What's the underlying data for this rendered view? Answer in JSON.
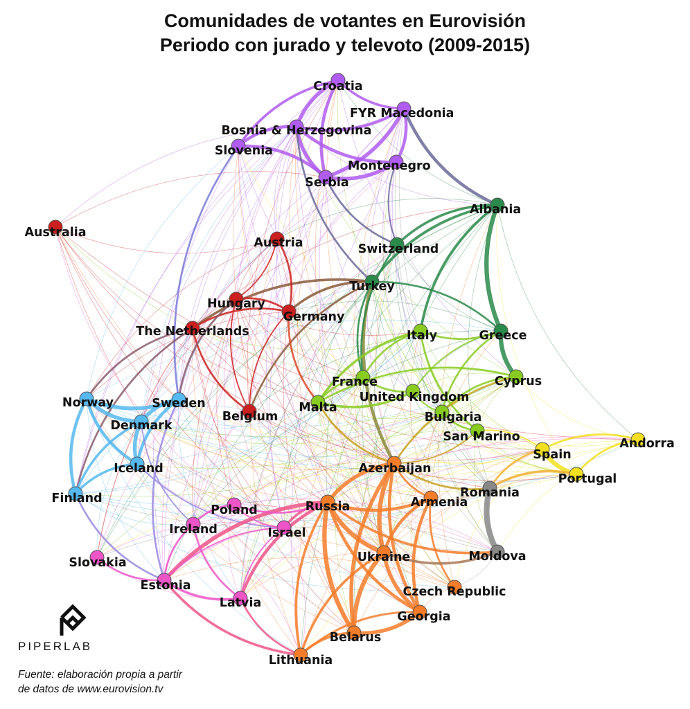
{
  "title_line1": "Comunidades de votantes en Eurovisión",
  "title_line2": "Periodo con jurado y televoto (2009-2015)",
  "brand": "PIPERLAB",
  "source_line1": "Fuente: elaboración propia a partir",
  "source_line2": "de datos de www.eurovision.tv",
  "communities": {
    "balkan": "#b05cf0",
    "southeast": "#2a8a4a",
    "west": "#cc1f1f",
    "nordic": "#55b8ee",
    "mediterranean": "#88cc22",
    "iberia": "#f2e020",
    "ex_soviet": "#f57d2a",
    "romania_moldova": "#888888",
    "central_east": "#ee55c8",
    "turkey": "#6a6a9a"
  },
  "nodes": [
    {
      "id": "croatia",
      "label": "Croatia",
      "group": "balkan"
    },
    {
      "id": "fyr-macedonia",
      "label": "FYR Macedonia",
      "group": "balkan"
    },
    {
      "id": "bosnia",
      "label": "Bosnia & Herzegovina",
      "group": "balkan"
    },
    {
      "id": "slovenia",
      "label": "Slovenia",
      "group": "balkan"
    },
    {
      "id": "montenegro",
      "label": "Montenegro",
      "group": "balkan"
    },
    {
      "id": "serbia",
      "label": "Serbia",
      "group": "balkan"
    },
    {
      "id": "albania",
      "label": "Albania",
      "group": "southeast"
    },
    {
      "id": "switzerland",
      "label": "Switzerland",
      "group": "southeast"
    },
    {
      "id": "turkey",
      "label": "Turkey",
      "group": "southeast"
    },
    {
      "id": "greece",
      "label": "Greece",
      "group": "southeast"
    },
    {
      "id": "australia",
      "label": "Australia",
      "group": "west"
    },
    {
      "id": "austria",
      "label": "Austria",
      "group": "west"
    },
    {
      "id": "hungary",
      "label": "Hungary",
      "group": "west"
    },
    {
      "id": "germany",
      "label": "Germany",
      "group": "west"
    },
    {
      "id": "netherlands",
      "label": "The Netherlands",
      "group": "west"
    },
    {
      "id": "belgium",
      "label": "Belgium",
      "group": "west"
    },
    {
      "id": "norway",
      "label": "Norway",
      "group": "nordic"
    },
    {
      "id": "sweden",
      "label": "Sweden",
      "group": "nordic"
    },
    {
      "id": "denmark",
      "label": "Denmark",
      "group": "nordic"
    },
    {
      "id": "iceland",
      "label": "Iceland",
      "group": "nordic"
    },
    {
      "id": "finland",
      "label": "Finland",
      "group": "nordic"
    },
    {
      "id": "italy",
      "label": "Italy",
      "group": "mediterranean"
    },
    {
      "id": "cyprus",
      "label": "Cyprus",
      "group": "mediterranean"
    },
    {
      "id": "france",
      "label": "France",
      "group": "mediterranean"
    },
    {
      "id": "uk",
      "label": "United Kingdom",
      "group": "mediterranean"
    },
    {
      "id": "malta",
      "label": "Malta",
      "group": "mediterranean"
    },
    {
      "id": "bulgaria",
      "label": "Bulgaria",
      "group": "mediterranean"
    },
    {
      "id": "san-marino",
      "label": "San Marino",
      "group": "mediterranean"
    },
    {
      "id": "andorra",
      "label": "Andorra",
      "group": "iberia"
    },
    {
      "id": "spain",
      "label": "Spain",
      "group": "iberia"
    },
    {
      "id": "portugal",
      "label": "Portugal",
      "group": "iberia"
    },
    {
      "id": "azerbaijan",
      "label": "Azerbaijan",
      "group": "ex_soviet"
    },
    {
      "id": "russia",
      "label": "Russia",
      "group": "ex_soviet"
    },
    {
      "id": "armenia",
      "label": "Armenia",
      "group": "ex_soviet"
    },
    {
      "id": "ukraine",
      "label": "Ukraine",
      "group": "ex_soviet"
    },
    {
      "id": "czech-republic",
      "label": "Czech Republic",
      "group": "ex_soviet"
    },
    {
      "id": "georgia",
      "label": "Georgia",
      "group": "ex_soviet"
    },
    {
      "id": "belarus",
      "label": "Belarus",
      "group": "ex_soviet"
    },
    {
      "id": "lithuania",
      "label": "Lithuania",
      "group": "ex_soviet"
    },
    {
      "id": "romania",
      "label": "Romania",
      "group": "romania_moldova"
    },
    {
      "id": "moldova",
      "label": "Moldova",
      "group": "romania_moldova"
    },
    {
      "id": "poland",
      "label": "Poland",
      "group": "central_east"
    },
    {
      "id": "ireland",
      "label": "Ireland",
      "group": "central_east"
    },
    {
      "id": "israel",
      "label": "Israel",
      "group": "central_east"
    },
    {
      "id": "slovakia",
      "label": "Slovakia",
      "group": "central_east"
    },
    {
      "id": "estonia",
      "label": "Estonia",
      "group": "central_east"
    },
    {
      "id": "latvia",
      "label": "Latvia",
      "group": "central_east"
    }
  ],
  "edges": [
    {
      "a": "croatia",
      "b": "bosnia",
      "w": 6,
      "color": "#b05cf0"
    },
    {
      "a": "croatia",
      "b": "serbia",
      "w": 5,
      "color": "#b05cf0"
    },
    {
      "a": "croatia",
      "b": "slovenia",
      "w": 4,
      "color": "#b05cf0"
    },
    {
      "a": "croatia",
      "b": "fyr-macedonia",
      "w": 4,
      "color": "#b05cf0"
    },
    {
      "a": "bosnia",
      "b": "serbia",
      "w": 6,
      "color": "#b05cf0"
    },
    {
      "a": "bosnia",
      "b": "slovenia",
      "w": 5,
      "color": "#b05cf0"
    },
    {
      "a": "bosnia",
      "b": "montenegro",
      "w": 5,
      "color": "#b05cf0"
    },
    {
      "a": "bosnia",
      "b": "fyr-macedonia",
      "w": 5,
      "color": "#b05cf0"
    },
    {
      "a": "serbia",
      "b": "montenegro",
      "w": 6,
      "color": "#b05cf0"
    },
    {
      "a": "serbia",
      "b": "fyr-macedonia",
      "w": 6,
      "color": "#b05cf0"
    },
    {
      "a": "serbia",
      "b": "slovenia",
      "w": 5,
      "color": "#b05cf0"
    },
    {
      "a": "montenegro",
      "b": "fyr-macedonia",
      "w": 5,
      "color": "#b05cf0"
    },
    {
      "a": "fyr-macedonia",
      "b": "albania",
      "w": 5,
      "color": "#6a6a9a"
    },
    {
      "a": "bosnia",
      "b": "turkey",
      "w": 3,
      "color": "#6a6a9a"
    },
    {
      "a": "serbia",
      "b": "switzerland",
      "w": 3,
      "color": "#6a6a9a"
    },
    {
      "a": "slovenia",
      "b": "sweden",
      "w": 3,
      "color": "#7a7ad8"
    },
    {
      "a": "montenegro",
      "b": "switzerland",
      "w": 2,
      "color": "#6a6a9a"
    },
    {
      "a": "albania",
      "b": "greece",
      "w": 7,
      "color": "#2a8a4a"
    },
    {
      "a": "albania",
      "b": "switzerland",
      "w": 4,
      "color": "#2a8a4a"
    },
    {
      "a": "albania",
      "b": "turkey",
      "w": 4,
      "color": "#2a8a4a"
    },
    {
      "a": "albania",
      "b": "italy",
      "w": 4,
      "color": "#2a8a4a"
    },
    {
      "a": "greece",
      "b": "cyprus",
      "w": 7,
      "color": "#2a8a4a"
    },
    {
      "a": "greece",
      "b": "turkey",
      "w": 3,
      "color": "#2a8a4a"
    },
    {
      "a": "turkey",
      "b": "azerbaijan",
      "w": 5,
      "color": "#8a8a3a"
    },
    {
      "a": "turkey",
      "b": "germany",
      "w": 4,
      "color": "#8a5a3a"
    },
    {
      "a": "turkey",
      "b": "netherlands",
      "w": 4,
      "color": "#8a5a3a"
    },
    {
      "a": "turkey",
      "b": "belgium",
      "w": 3,
      "color": "#8a5a3a"
    },
    {
      "a": "turkey",
      "b": "france",
      "w": 3,
      "color": "#2a8a4a"
    },
    {
      "a": "switzerland",
      "b": "france",
      "w": 3,
      "color": "#2a8a4a"
    },
    {
      "a": "germany",
      "b": "hungary",
      "w": 3,
      "color": "#cc1f1f"
    },
    {
      "a": "germany",
      "b": "netherlands",
      "w": 3,
      "color": "#cc1f1f"
    },
    {
      "a": "germany",
      "b": "austria",
      "w": 3,
      "color": "#cc1f1f"
    },
    {
      "a": "netherlands",
      "b": "belgium",
      "w": 3,
      "color": "#cc1f1f"
    },
    {
      "a": "hungary",
      "b": "belgium",
      "w": 2,
      "color": "#cc1f1f"
    },
    {
      "a": "germany",
      "b": "belgium",
      "w": 2,
      "color": "#cc1f1f"
    },
    {
      "a": "hungary",
      "b": "austria",
      "w": 2,
      "color": "#cc1f1f"
    },
    {
      "a": "germany",
      "b": "malta",
      "w": 3,
      "color": "#dd4422"
    },
    {
      "a": "netherlands",
      "b": "norway",
      "w": 3,
      "color": "#8a5a6a"
    },
    {
      "a": "netherlands",
      "b": "finland",
      "w": 3,
      "color": "#8a5a6a"
    },
    {
      "a": "hungary",
      "b": "sweden",
      "w": 3,
      "color": "#8a5a6a"
    },
    {
      "a": "norway",
      "b": "sweden",
      "w": 6,
      "color": "#55b8ee"
    },
    {
      "a": "norway",
      "b": "denmark",
      "w": 6,
      "color": "#55b8ee"
    },
    {
      "a": "norway",
      "b": "iceland",
      "w": 5,
      "color": "#55b8ee"
    },
    {
      "a": "norway",
      "b": "finland",
      "w": 5,
      "color": "#55b8ee"
    },
    {
      "a": "sweden",
      "b": "denmark",
      "w": 6,
      "color": "#55b8ee"
    },
    {
      "a": "sweden",
      "b": "iceland",
      "w": 5,
      "color": "#55b8ee"
    },
    {
      "a": "denmark",
      "b": "iceland",
      "w": 6,
      "color": "#55b8ee"
    },
    {
      "a": "denmark",
      "b": "finland",
      "w": 4,
      "color": "#55b8ee"
    },
    {
      "a": "iceland",
      "b": "finland",
      "w": 4,
      "color": "#55b8ee"
    },
    {
      "a": "sweden",
      "b": "estonia",
      "w": 3,
      "color": "#9a8ae0"
    },
    {
      "a": "finland",
      "b": "estonia",
      "w": 3,
      "color": "#9a8ae0"
    },
    {
      "a": "denmark",
      "b": "ireland",
      "w": 2,
      "color": "#9a8ae0"
    },
    {
      "a": "iceland",
      "b": "israel",
      "w": 2,
      "color": "#9a8ae0"
    },
    {
      "a": "italy",
      "b": "greece",
      "w": 3,
      "color": "#88cc22"
    },
    {
      "a": "italy",
      "b": "france",
      "w": 3,
      "color": "#88cc22"
    },
    {
      "a": "italy",
      "b": "malta",
      "w": 4,
      "color": "#88cc22"
    },
    {
      "a": "italy",
      "b": "san-marino",
      "w": 3,
      "color": "#88cc22"
    },
    {
      "a": "cyprus",
      "b": "bulgaria",
      "w": 3,
      "color": "#88cc22"
    },
    {
      "a": "cyprus",
      "b": "malta",
      "w": 3,
      "color": "#88cc22"
    },
    {
      "a": "cyprus",
      "b": "azerbaijan",
      "w": 3,
      "color": "#c8a020"
    },
    {
      "a": "greece",
      "b": "bulgaria",
      "w": 3,
      "color": "#88cc22"
    },
    {
      "a": "greece",
      "b": "uk",
      "w": 2,
      "color": "#88cc22"
    },
    {
      "a": "france",
      "b": "uk",
      "w": 3,
      "color": "#88cc22"
    },
    {
      "a": "france",
      "b": "malta",
      "w": 3,
      "color": "#88cc22"
    },
    {
      "a": "malta",
      "b": "uk",
      "w": 4,
      "color": "#88cc22"
    },
    {
      "a": "uk",
      "b": "bulgaria",
      "w": 2,
      "color": "#88cc22"
    },
    {
      "a": "bulgaria",
      "b": "san-marino",
      "w": 3,
      "color": "#88cc22"
    },
    {
      "a": "spain",
      "b": "portugal",
      "w": 7,
      "color": "#f2e020"
    },
    {
      "a": "andorra",
      "b": "spain",
      "w": 3,
      "color": "#f2e020"
    },
    {
      "a": "andorra",
      "b": "portugal",
      "w": 3,
      "color": "#f2e020"
    },
    {
      "a": "portugal",
      "b": "romania",
      "w": 4,
      "color": "#f0b030"
    },
    {
      "a": "spain",
      "b": "romania",
      "w": 3,
      "color": "#f0b030"
    },
    {
      "a": "spain",
      "b": "san-marino",
      "w": 2,
      "color": "#f2e020"
    },
    {
      "a": "azerbaijan",
      "b": "russia",
      "w": 6,
      "color": "#f57d2a"
    },
    {
      "a": "azerbaijan",
      "b": "ukraine",
      "w": 7,
      "color": "#f57d2a"
    },
    {
      "a": "azerbaijan",
      "b": "georgia",
      "w": 5,
      "color": "#f57d2a"
    },
    {
      "a": "azerbaijan",
      "b": "belarus",
      "w": 6,
      "color": "#f57d2a"
    },
    {
      "a": "azerbaijan",
      "b": "armenia",
      "w": 3,
      "color": "#f57d2a"
    },
    {
      "a": "russia",
      "b": "ukraine",
      "w": 7,
      "color": "#f57d2a"
    },
    {
      "a": "russia",
      "b": "belarus",
      "w": 7,
      "color": "#f57d2a"
    },
    {
      "a": "russia",
      "b": "armenia",
      "w": 5,
      "color": "#f57d2a"
    },
    {
      "a": "russia",
      "b": "georgia",
      "w": 5,
      "color": "#f57d2a"
    },
    {
      "a": "russia",
      "b": "lithuania",
      "w": 4,
      "color": "#f57d2a"
    },
    {
      "a": "russia",
      "b": "moldova",
      "w": 4,
      "color": "#f57d2a"
    },
    {
      "a": "russia",
      "b": "israel",
      "w": 4,
      "color": "#ee5588"
    },
    {
      "a": "russia",
      "b": "latvia",
      "w": 5,
      "color": "#ee5588"
    },
    {
      "a": "russia",
      "b": "estonia",
      "w": 6,
      "color": "#ee5588"
    },
    {
      "a": "armenia",
      "b": "ukraine",
      "w": 5,
      "color": "#f57d2a"
    },
    {
      "a": "armenia",
      "b": "georgia",
      "w": 5,
      "color": "#f57d2a"
    },
    {
      "a": "armenia",
      "b": "czech-republic",
      "w": 3,
      "color": "#f57d2a"
    },
    {
      "a": "ukraine",
      "b": "belarus",
      "w": 7,
      "color": "#f57d2a"
    },
    {
      "a": "ukraine",
      "b": "georgia",
      "w": 6,
      "color": "#f57d2a"
    },
    {
      "a": "ukraine",
      "b": "lithuania",
      "w": 4,
      "color": "#f57d2a"
    },
    {
      "a": "ukraine",
      "b": "moldova",
      "w": 4,
      "color": "#a87a5a"
    },
    {
      "a": "belarus",
      "b": "georgia",
      "w": 6,
      "color": "#f57d2a"
    },
    {
      "a": "belarus",
      "b": "lithuania",
      "w": 4,
      "color": "#f57d2a"
    },
    {
      "a": "georgia",
      "b": "lithuania",
      "w": 3,
      "color": "#f57d2a"
    },
    {
      "a": "romania",
      "b": "moldova",
      "w": 9,
      "color": "#888888"
    },
    {
      "a": "azerbaijan",
      "b": "romania",
      "w": 3,
      "color": "#c8a020"
    },
    {
      "a": "malta",
      "b": "azerbaijan",
      "w": 3,
      "color": "#c8a020"
    },
    {
      "a": "azerbaijan",
      "b": "san-marino",
      "w": 2,
      "color": "#c8a020"
    },
    {
      "a": "poland",
      "b": "ireland",
      "w": 3,
      "color": "#ee55c8"
    },
    {
      "a": "poland",
      "b": "israel",
      "w": 2,
      "color": "#ee55c8"
    },
    {
      "a": "poland",
      "b": "russia",
      "w": 3,
      "color": "#ee55c8"
    },
    {
      "a": "ireland",
      "b": "estonia",
      "w": 3,
      "color": "#ee55c8"
    },
    {
      "a": "ireland",
      "b": "latvia",
      "w": 3,
      "color": "#ee55c8"
    },
    {
      "a": "slovakia",
      "b": "estonia",
      "w": 3,
      "color": "#ee55c8"
    },
    {
      "a": "estonia",
      "b": "latvia",
      "w": 4,
      "color": "#ee55c8"
    },
    {
      "a": "estonia",
      "b": "lithuania",
      "w": 4,
      "color": "#ee5588"
    },
    {
      "a": "latvia",
      "b": "lithuania",
      "w": 3,
      "color": "#ee5588"
    },
    {
      "a": "israel",
      "b": "latvia",
      "w": 2,
      "color": "#ee55c8"
    },
    {
      "a": "israel",
      "b": "estonia",
      "w": 2,
      "color": "#ee55c8"
    }
  ]
}
